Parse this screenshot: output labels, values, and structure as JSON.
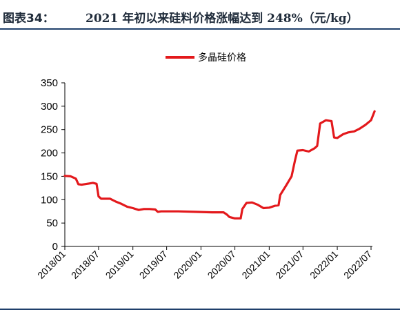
{
  "header": {
    "figure_label": "图表34：",
    "figure_title": "2021 年初以来硅料价格涨幅达到 248%（元/kg）"
  },
  "chart_data": {
    "type": "line",
    "title": "",
    "xlabel": "",
    "ylabel": "",
    "ylim": [
      0,
      350
    ],
    "y_ticks": [
      "0",
      "50",
      "100",
      "150",
      "200",
      "250",
      "300",
      "350"
    ],
    "x_ticks": [
      "2018/01",
      "2018/07",
      "2019/01",
      "2019/07",
      "2020/01",
      "2020/07",
      "2021/01",
      "2021/07",
      "2022/01",
      "2022/07"
    ],
    "legend_position": "top-center",
    "grid": false,
    "color": "#e3191c",
    "series": [
      {
        "name": "多晶硅价格",
        "points": [
          [
            "2018/01/01",
            151
          ],
          [
            "2018/02/01",
            150
          ],
          [
            "2018/03/01",
            145
          ],
          [
            "2018/03/15",
            133
          ],
          [
            "2018/04/01",
            132
          ],
          [
            "2018/05/01",
            134
          ],
          [
            "2018/06/01",
            136
          ],
          [
            "2018/06/20",
            134
          ],
          [
            "2018/07/01",
            107
          ],
          [
            "2018/07/15",
            102
          ],
          [
            "2018/09/01",
            102
          ],
          [
            "2018/10/01",
            96
          ],
          [
            "2018/11/01",
            91
          ],
          [
            "2018/12/01",
            85
          ],
          [
            "2019/01/01",
            82
          ],
          [
            "2019/02/01",
            78
          ],
          [
            "2019/03/01",
            80
          ],
          [
            "2019/04/01",
            80
          ],
          [
            "2019/05/01",
            79
          ],
          [
            "2019/05/15",
            74
          ],
          [
            "2019/06/01",
            75
          ],
          [
            "2019/09/01",
            75
          ],
          [
            "2019/12/01",
            74
          ],
          [
            "2020/03/01",
            73
          ],
          [
            "2020/05/01",
            73
          ],
          [
            "2020/05/20",
            68
          ],
          [
            "2020/06/01",
            63
          ],
          [
            "2020/07/01",
            60
          ],
          [
            "2020/08/01",
            60
          ],
          [
            "2020/08/10",
            80
          ],
          [
            "2020/09/01",
            93
          ],
          [
            "2020/10/01",
            94
          ],
          [
            "2020/11/01",
            89
          ],
          [
            "2020/12/01",
            82
          ],
          [
            "2021/01/01",
            83
          ],
          [
            "2021/02/01",
            87
          ],
          [
            "2021/02/20",
            88
          ],
          [
            "2021/03/01",
            110
          ],
          [
            "2021/04/01",
            130
          ],
          [
            "2021/05/01",
            150
          ],
          [
            "2021/05/20",
            185
          ],
          [
            "2021/06/01",
            205
          ],
          [
            "2021/07/01",
            206
          ],
          [
            "2021/08/01",
            203
          ],
          [
            "2021/09/01",
            210
          ],
          [
            "2021/09/15",
            215
          ],
          [
            "2021/10/01",
            263
          ],
          [
            "2021/11/01",
            270
          ],
          [
            "2021/12/01",
            268
          ],
          [
            "2021/12/15",
            233
          ],
          [
            "2022/01/01",
            232
          ],
          [
            "2022/02/01",
            240
          ],
          [
            "2022/03/01",
            244
          ],
          [
            "2022/04/01",
            246
          ],
          [
            "2022/05/01",
            252
          ],
          [
            "2022/06/01",
            260
          ],
          [
            "2022/07/01",
            270
          ],
          [
            "2022/07/20",
            289
          ]
        ]
      }
    ]
  }
}
